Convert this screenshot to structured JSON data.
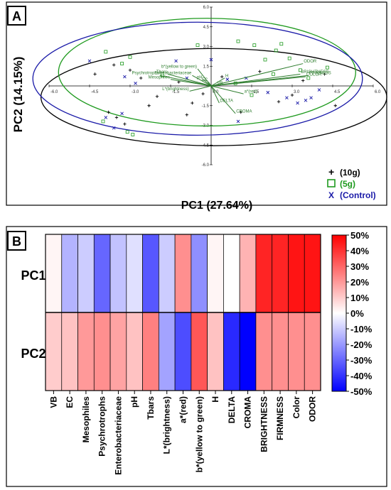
{
  "panel_a": {
    "label": "A",
    "xlabel": "PC1 (27.64%)",
    "ylabel": "PC2 (14.15%)",
    "legend": [
      {
        "marker": "+",
        "text": "(10g)",
        "color": "#000000"
      },
      {
        "marker": "□",
        "text": "(5g)",
        "color": "#1e9a1e"
      },
      {
        "marker": "X",
        "text": "(Control)",
        "color": "#1a1aa8"
      }
    ],
    "x_ticks": [
      "-6.0",
      "-4.5",
      "-3.0",
      "-1.5",
      "0.0",
      "1.5",
      "3.0",
      "4.5",
      "6.0"
    ],
    "y_ticks": [
      "6.0",
      "4.5",
      "3.0",
      "1.5",
      "0.0",
      "-1.5",
      "-3.0",
      "-4.5",
      "-6.0"
    ]
  },
  "panel_b": {
    "label": "B",
    "row_labels": [
      "PC1",
      "PC2"
    ],
    "colorbar_ticks": [
      "50%",
      "40%",
      "30%",
      "20%",
      "10%",
      "0%",
      "-10%",
      "-20%",
      "-30%",
      "-40%",
      "-50%"
    ]
  },
  "colors": {
    "control": "#1a1aa8",
    "g5": "#1e9a1e",
    "g10": "#000000",
    "loading": "#2e7d2e",
    "pos": "#ff0000",
    "neg": "#0000ff"
  },
  "chart_data": [
    {
      "type": "scatter",
      "xlabel": "PC1 (27.64%)",
      "ylabel": "PC2 (14.15%)",
      "xlim": [
        -6,
        6
      ],
      "ylim": [
        -6,
        6
      ],
      "series": [
        {
          "name": "(10g)",
          "marker": "+",
          "points": [
            [
              -4.3,
              0.9
            ],
            [
              -3.6,
              1.6
            ],
            [
              -3.0,
              1.2
            ],
            [
              -2.6,
              0.6
            ],
            [
              -2.0,
              -0.8
            ],
            [
              -1.2,
              0.3
            ],
            [
              -0.9,
              -2.2
            ],
            [
              -0.7,
              -1.3
            ],
            [
              -0.3,
              -0.6
            ],
            [
              0.4,
              0.7
            ],
            [
              1.1,
              -2.0
            ],
            [
              1.8,
              1.1
            ],
            [
              2.5,
              -1.2
            ],
            [
              3.0,
              -0.7
            ],
            [
              3.4,
              0.4
            ],
            [
              4.2,
              0.9
            ],
            [
              4.6,
              -1.5
            ],
            [
              -3.8,
              -2.0
            ],
            [
              -3.5,
              -2.4
            ],
            [
              -3.2,
              -2.9
            ],
            [
              -2.3,
              -1.5
            ]
          ]
        },
        {
          "name": "(5g)",
          "marker": "square",
          "points": [
            [
              -3.9,
              2.6
            ],
            [
              -3.3,
              1.7
            ],
            [
              -3.0,
              2.2
            ],
            [
              -1.8,
              0.8
            ],
            [
              -0.5,
              3.1
            ],
            [
              1.0,
              3.4
            ],
            [
              1.5,
              -0.7
            ],
            [
              2.0,
              2.0
            ],
            [
              2.4,
              2.7
            ],
            [
              2.6,
              3.2
            ],
            [
              2.9,
              2.1
            ],
            [
              3.3,
              1.2
            ],
            [
              3.6,
              0.6
            ],
            [
              4.3,
              1.4
            ],
            [
              0.9,
              0.2
            ],
            [
              -4.0,
              -2.7
            ],
            [
              -3.1,
              -3.5
            ],
            [
              -2.9,
              -3.7
            ],
            [
              1.6,
              3.1
            ],
            [
              2.3,
              0.9
            ]
          ]
        },
        {
          "name": "(Control)",
          "marker": "x",
          "points": [
            [
              -4.5,
              1.9
            ],
            [
              -3.2,
              0.7
            ],
            [
              -2.8,
              0.2
            ],
            [
              -1.3,
              1.9
            ],
            [
              -0.9,
              0.6
            ],
            [
              0.0,
              2.0
            ],
            [
              0.6,
              0.5
            ],
            [
              1.3,
              0.6
            ],
            [
              2.1,
              -0.5
            ],
            [
              2.8,
              -0.9
            ],
            [
              3.2,
              -1.3
            ],
            [
              3.7,
              -0.9
            ],
            [
              4.0,
              -0.3
            ],
            [
              -3.9,
              -2.4
            ],
            [
              -3.6,
              -3.2
            ],
            [
              -3.3,
              -2.1
            ],
            [
              1.0,
              -2.7
            ],
            [
              3.5,
              -1.1
            ]
          ]
        }
      ],
      "confidence_ellipses": [
        {
          "series": "(10g)",
          "center": [
            0.1,
            -0.85
          ],
          "semi_axes": [
            6.4,
            3.7
          ],
          "tilt_deg": 0
        },
        {
          "series": "(5g)",
          "center": [
            -0.15,
            1.05
          ],
          "semi_axes": [
            5.5,
            4.1
          ],
          "tilt_deg": 0
        },
        {
          "series": "(Control)",
          "center": [
            -0.5,
            0.55
          ],
          "semi_axes": [
            6.1,
            4.3
          ],
          "tilt_deg": 0
        }
      ],
      "loadings": [
        {
          "name": "Tbars",
          "x": -1.6,
          "y": 0.9
        },
        {
          "name": "Psychrotrophs",
          "x": -1.9,
          "y": 0.8
        },
        {
          "name": "Mesophiles",
          "x": -1.5,
          "y": 0.5
        },
        {
          "name": "Enterobacteriaceae",
          "x": -0.7,
          "y": 0.8
        },
        {
          "name": "b*(yellow to green)",
          "x": -0.5,
          "y": 1.3
        },
        {
          "name": "pH",
          "x": -0.3,
          "y": 0.5
        },
        {
          "name": "EC",
          "x": -0.1,
          "y": 0.3
        },
        {
          "name": "H",
          "x": 0.5,
          "y": 0.6
        },
        {
          "name": "VB",
          "x": 0.2,
          "y": 0.02
        },
        {
          "name": "L*(brightness)",
          "x": -0.8,
          "y": -0.4
        },
        {
          "name": "a*(red)",
          "x": 1.2,
          "y": -0.6
        },
        {
          "name": "DELTA",
          "x": 0.3,
          "y": -1.3
        },
        {
          "name": "CROMA",
          "x": 0.9,
          "y": -2.1
        },
        {
          "name": "BRIGHTNESS",
          "x": 3.3,
          "y": 0.9
        },
        {
          "name": "ODOR",
          "x": 3.4,
          "y": 1.7
        },
        {
          "name": "FIRMNESS",
          "x": 3.6,
          "y": 0.8
        },
        {
          "name": "COLOR",
          "x": 3.5,
          "y": 0.7
        }
      ]
    },
    {
      "type": "heatmap",
      "rows": [
        "PC1",
        "PC2"
      ],
      "columns": [
        "VB",
        "EC",
        "Mesophiles",
        "Psychrotrophs",
        "Enterobacteriaceae",
        "pH",
        "Tbars",
        "L*(brightness)",
        "a*(red)",
        "b*(yellow to green)",
        "H",
        "DELTA",
        "CROMA",
        "BRIGHTNESS",
        "FIRMNESS",
        "Color",
        "ODOR"
      ],
      "values": [
        [
          2,
          -15,
          -10,
          -30,
          -12,
          -6,
          -33,
          -10,
          22,
          -22,
          2,
          0,
          15,
          43,
          43,
          46,
          46
        ],
        [
          10,
          12,
          20,
          22,
          18,
          12,
          25,
          -18,
          -35,
          33,
          12,
          -42,
          -50,
          22,
          22,
          22,
          22
        ]
      ],
      "color_range": [
        -50,
        50
      ],
      "colorbar_ticks": [
        "50%",
        "40%",
        "30%",
        "20%",
        "10%",
        "0%",
        "-10%",
        "-20%",
        "-30%",
        "-40%",
        "-50%"
      ]
    }
  ]
}
